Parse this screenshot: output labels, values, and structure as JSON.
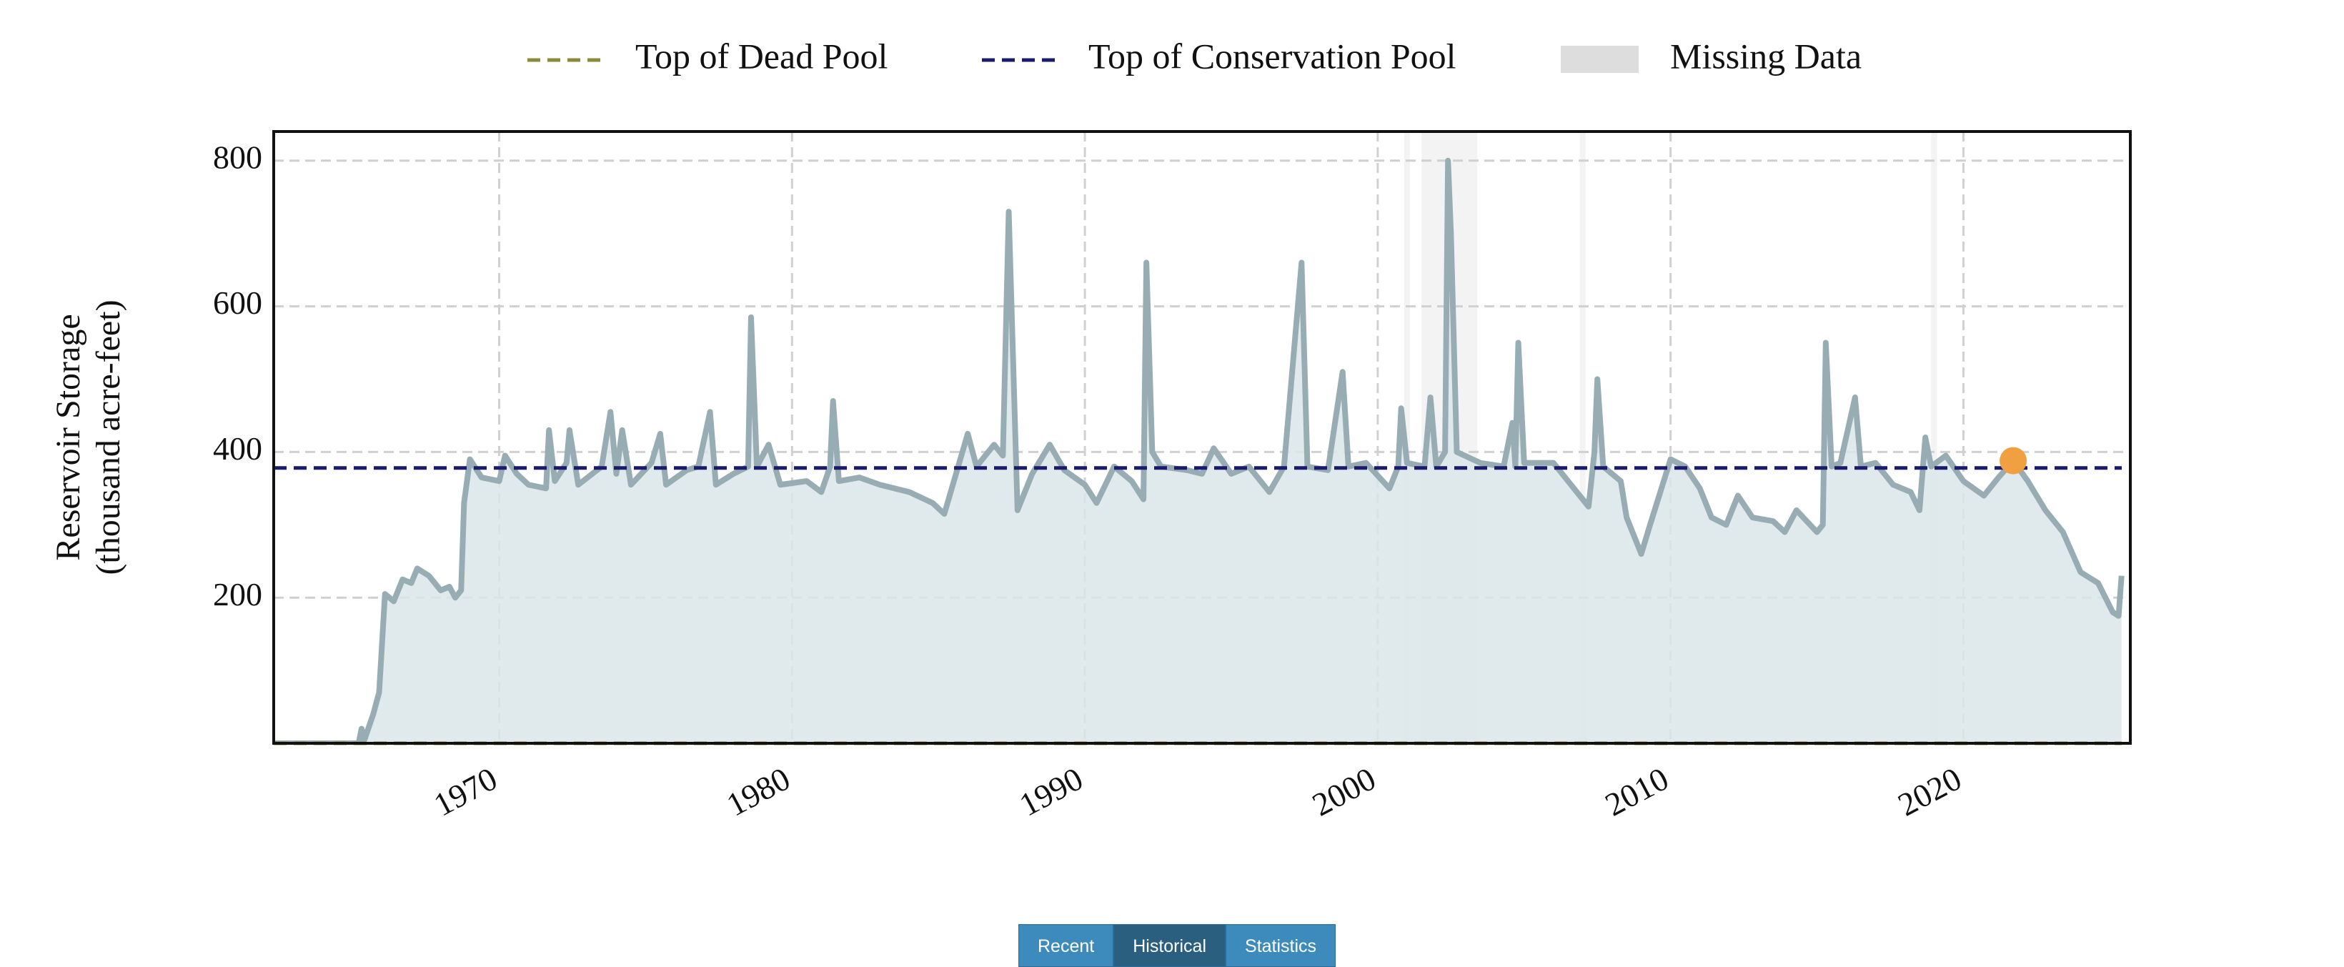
{
  "chart_data": {
    "type": "line",
    "ylabel": [
      "Reservoir Storage",
      "(thousand acre-feet)"
    ],
    "xlim": [
      1962.3,
      2025.7
    ],
    "ylim": [
      0,
      840
    ],
    "xticks": [
      1970,
      1980,
      1990,
      2000,
      2010,
      2020
    ],
    "yticks": [
      200,
      400,
      600,
      800
    ],
    "grid": true,
    "x": [
      1962.3,
      1965.2,
      1965.3,
      1965.4,
      1965.7,
      1965.9,
      1966.1,
      1966.4,
      1966.7,
      1967,
      1967.2,
      1967.6,
      1968,
      1968.3,
      1968.5,
      1968.7,
      1968.8,
      1969,
      1969.4,
      1970,
      1970.2,
      1970.6,
      1971,
      1971.6,
      1971.7,
      1971.9,
      1972.3,
      1972.4,
      1972.7,
      1973.5,
      1973.8,
      1974,
      1974.2,
      1974.5,
      1975.2,
      1975.5,
      1975.7,
      1976.4,
      1976.8,
      1977.2,
      1977.4,
      1978,
      1978.5,
      1978.6,
      1978.8,
      1979.2,
      1979.6,
      1980.5,
      1981,
      1981.3,
      1981.4,
      1981.6,
      1982.3,
      1983,
      1984,
      1984.8,
      1985.2,
      1985.6,
      1986,
      1986.3,
      1986.9,
      1987.2,
      1987.4,
      1987.7,
      1988.2,
      1988.8,
      1989.3,
      1990,
      1990.4,
      1991,
      1991.6,
      1992,
      1992.1,
      1992.3,
      1992.6,
      1993.5,
      1994,
      1994.4,
      1995,
      1995.6,
      1996.3,
      1996.8,
      1997.4,
      1997.6,
      1998.3,
      1998.8,
      1999,
      1999.6,
      2000.4,
      2000.7,
      2000.8,
      2001,
      2001.6,
      2001.8,
      2002,
      2002.3,
      2002.4,
      2002.5,
      2002.7,
      2003.5,
      2004.3,
      2004.6,
      2004.7,
      2004.8,
      2005,
      2006,
      2006.7,
      2007.2,
      2007.4,
      2007.5,
      2007.7,
      2008.3,
      2008.5,
      2009,
      2009.3,
      2010,
      2010.5,
      2011,
      2011.4,
      2011.9,
      2012.3,
      2012.8,
      2013.5,
      2013.9,
      2014.3,
      2015,
      2015.2,
      2015.3,
      2015.5,
      2015.8,
      2016.3,
      2016.5,
      2017,
      2017.6,
      2018.2,
      2018.5,
      2018.7,
      2018.9,
      2019.4,
      2020,
      2020.7,
      2021.2,
      2021.7,
      2022.2,
      2022.8,
      2023.4,
      2024,
      2024.6,
      2025.1,
      2025.3,
      2025.4
    ],
    "series": [
      {
        "color": "#97adb3",
        "fill": "#dae5e7",
        "values": [
          0,
          0,
          20,
          5,
          40,
          70,
          205,
          195,
          225,
          220,
          240,
          230,
          210,
          215,
          200,
          210,
          330,
          390,
          365,
          360,
          395,
          370,
          355,
          350,
          430,
          360,
          385,
          430,
          355,
          380,
          455,
          370,
          430,
          355,
          385,
          425,
          355,
          375,
          380,
          455,
          355,
          370,
          380,
          585,
          380,
          410,
          355,
          360,
          345,
          380,
          470,
          360,
          365,
          355,
          345,
          330,
          315,
          370,
          425,
          380,
          410,
          395,
          730,
          320,
          370,
          410,
          375,
          355,
          330,
          380,
          360,
          335,
          660,
          400,
          380,
          375,
          370,
          405,
          370,
          380,
          345,
          380,
          660,
          380,
          375,
          510,
          380,
          385,
          350,
          380,
          460,
          385,
          380,
          475,
          380,
          400,
          800,
          700,
          400,
          385,
          380,
          440,
          380,
          550,
          385,
          385,
          350,
          325,
          400,
          500,
          380,
          360,
          310,
          260,
          300,
          390,
          380,
          350,
          310,
          300,
          340,
          310,
          305,
          290,
          320,
          290,
          300,
          550,
          380,
          385,
          475,
          380,
          385,
          355,
          345,
          320,
          420,
          380,
          395,
          360,
          340,
          365,
          388,
          360,
          320,
          290,
          235,
          220,
          180,
          175,
          230
        ]
      }
    ],
    "reference_lines": [
      {
        "name": "Top of Dead Pool",
        "value": 0,
        "color": "#8a8a3a"
      },
      {
        "name": "Top of Conservation Pool",
        "value": 378,
        "color": "#1a1a6e"
      }
    ],
    "missing_data": {
      "name": "Missing Data",
      "color": "#dddddd",
      "spans": [
        [
          2000.9,
          2001.1
        ],
        [
          2001.5,
          2003.4
        ],
        [
          2006.9,
          2007.1
        ],
        [
          2018.9,
          2019.1
        ]
      ]
    },
    "current": {
      "x": 2021.7,
      "y": 388,
      "color": "#f0a040"
    }
  },
  "buttons": [
    {
      "label": "Recent",
      "active": false
    },
    {
      "label": "Historical",
      "active": true
    },
    {
      "label": "Statistics",
      "active": false
    }
  ]
}
